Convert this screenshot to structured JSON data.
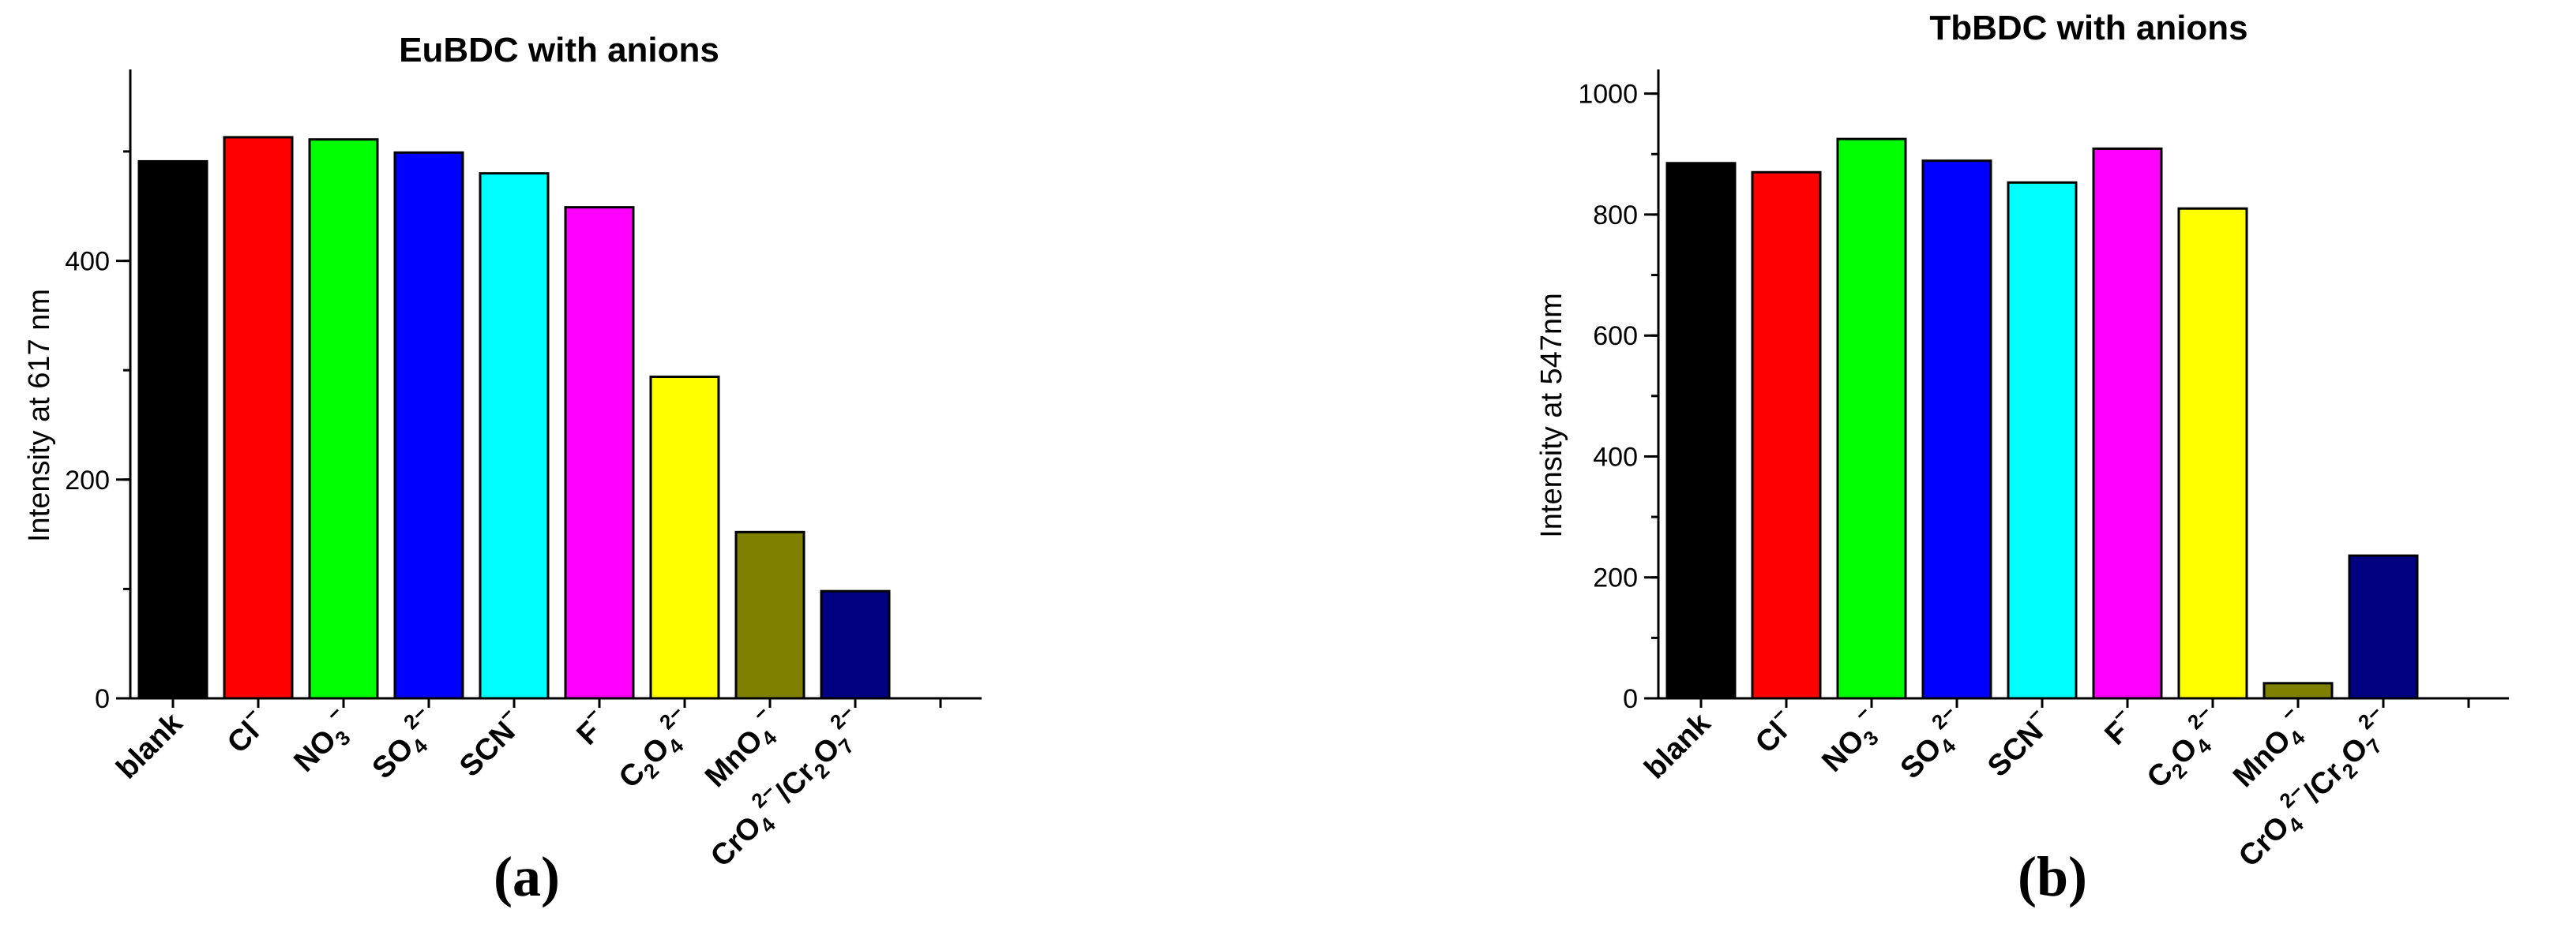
{
  "panel_labels": [
    "(a)",
    "(b)"
  ],
  "categories": [
    {
      "base": "blank"
    },
    {
      "base": "Cl",
      "sup": "−"
    },
    {
      "base": "NO",
      "sub": "3",
      "sup": "−"
    },
    {
      "base": "SO",
      "sub": "4",
      "sup": "2−"
    },
    {
      "base": "SCN",
      "sup": "−"
    },
    {
      "base": "F",
      "sup": "−"
    },
    {
      "base": "C",
      "sub": "2",
      "base2": "O",
      "sub2": "4",
      "sup": "2−"
    },
    {
      "base": "MnO",
      "sub": "4",
      "sup": "−"
    },
    {
      "base": "CrO",
      "sub": "4",
      "sup": "2−",
      "base2": "/Cr",
      "sub2": "2",
      "base3": "O",
      "sub3": "7",
      "sup3": "2−"
    }
  ],
  "chart_data": [
    {
      "type": "bar",
      "title": "EuBDC with anions",
      "ylabel": "Intensity at 617 nm",
      "xlabel": "",
      "ylim": [
        0,
        575
      ],
      "yticks": [
        0,
        200,
        400
      ],
      "minor_step": 100,
      "categories": [
        "blank",
        "Cl−",
        "NO3−",
        "SO42−",
        "SCN−",
        "F−",
        "C2O42−",
        "MnO4−",
        "CrO42−/Cr2O72−"
      ],
      "values": [
        491,
        513,
        511,
        499,
        480,
        449,
        294,
        152,
        98
      ],
      "colors": [
        "#000000",
        "#ff0000",
        "#00ff00",
        "#0000ff",
        "#00ffff",
        "#ff00ff",
        "#ffff00",
        "#808000",
        "#000080"
      ]
    },
    {
      "type": "bar",
      "title": "TbBDC with anions",
      "ylabel": "Intensity at 547nm",
      "xlabel": "",
      "ylim": [
        0,
        1040
      ],
      "yticks": [
        0,
        200,
        400,
        600,
        800,
        1000
      ],
      "minor_step": 100,
      "categories": [
        "blank",
        "Cl−",
        "NO3−",
        "SO42−",
        "SCN−",
        "F−",
        "C2O42−",
        "MnO4−",
        "CrO42−/Cr2O72−"
      ],
      "values": [
        885,
        870,
        925,
        889,
        853,
        909,
        810,
        25,
        236
      ],
      "colors": [
        "#000000",
        "#ff0000",
        "#00ff00",
        "#0000ff",
        "#00ffff",
        "#ff00ff",
        "#ffff00",
        "#808000",
        "#000080"
      ]
    }
  ]
}
